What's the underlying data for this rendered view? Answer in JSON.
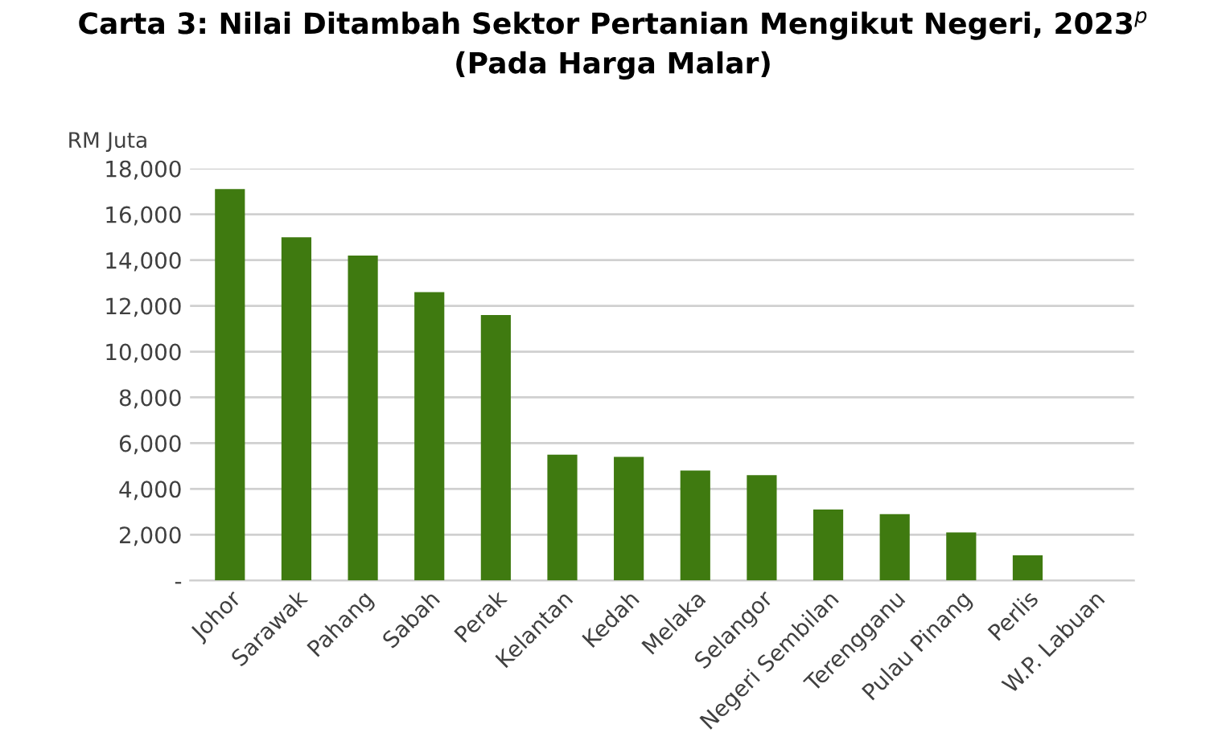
{
  "chart_data": {
    "type": "bar",
    "title": "Carta 3: Nilai Ditambah Sektor Pertanian Mengikut Negeri, 2023$^{p}$\n(Pada Harga Malar)",
    "ylabel": "RM Juta",
    "categories": [
      "Johor",
      "Sarawak",
      "Pahang",
      "Sabah",
      "Perak",
      "Kelantan",
      "Kedah",
      "Melaka",
      "Selangor",
      "Negeri Sembilan",
      "Terengganu",
      "Pulau Pinang",
      "Perlis",
      "W.P. Labuan"
    ],
    "values": [
      17100,
      15000,
      14200,
      12600,
      11600,
      5500,
      5400,
      4800,
      4600,
      3100,
      2900,
      2100,
      1100,
      0
    ],
    "color": "#3f7a10",
    "ylim": [
      0,
      18000
    ],
    "yticks": [
      {
        "value": 0,
        "label": "-"
      },
      {
        "value": 2000,
        "label": "2,000"
      },
      {
        "value": 4000,
        "label": "4,000"
      },
      {
        "value": 6000,
        "label": "6,000"
      },
      {
        "value": 8000,
        "label": "8,000"
      },
      {
        "value": 10000,
        "label": "10,000"
      },
      {
        "value": 12000,
        "label": "12,000"
      },
      {
        "value": 14000,
        "label": "14,000"
      },
      {
        "value": 16000,
        "label": "16,000"
      },
      {
        "value": 18000,
        "label": "18,000"
      }
    ],
    "grid": "y",
    "legend": false
  }
}
